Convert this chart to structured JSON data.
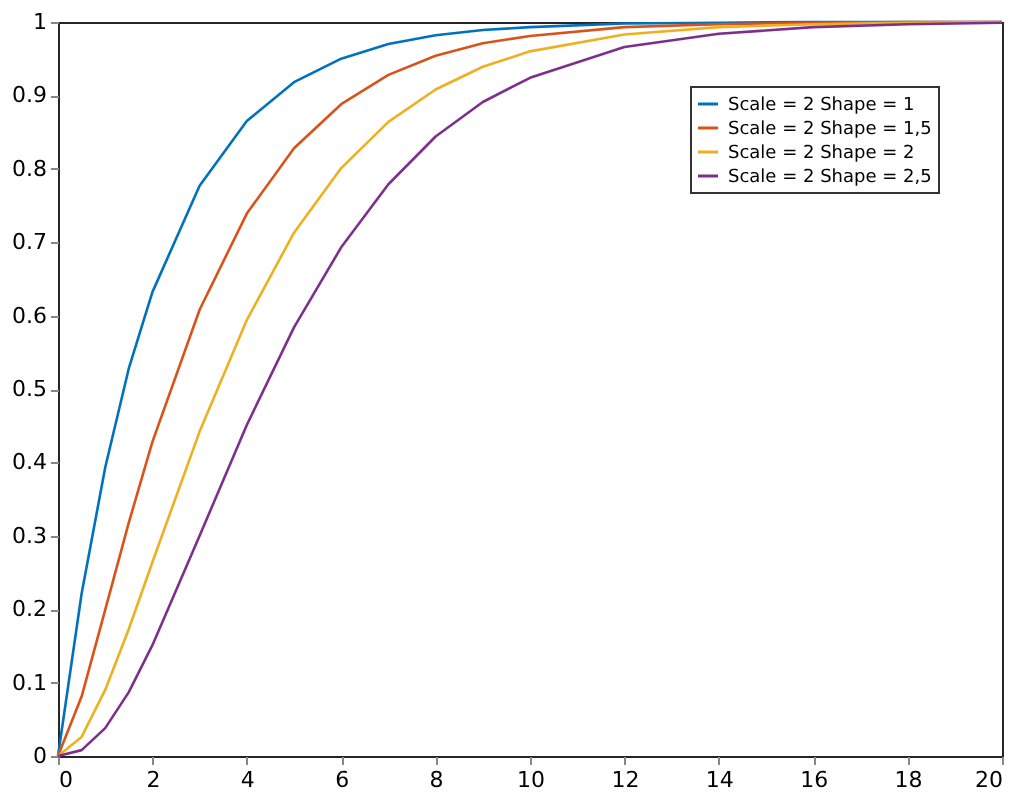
{
  "chart_data": {
    "type": "line",
    "x": [
      0,
      0.5,
      1,
      1.5,
      2,
      3,
      4,
      5,
      6,
      7,
      8,
      9,
      10,
      12,
      14,
      16,
      18,
      20
    ],
    "series": [
      {
        "name": "Scale = 2 Shape = 1",
        "color": "#0072bd",
        "values": [
          0,
          0.221,
          0.393,
          0.528,
          0.632,
          0.777,
          0.865,
          0.918,
          0.95,
          0.97,
          0.982,
          0.989,
          0.993,
          0.998,
          0.999,
          1,
          1,
          1
        ]
      },
      {
        "name": "Scale = 2 Shape = 1,5",
        "color": "#d95319",
        "values": [
          0,
          0.081,
          0.199,
          0.318,
          0.428,
          0.608,
          0.739,
          0.828,
          0.888,
          0.928,
          0.954,
          0.971,
          0.981,
          0.993,
          0.997,
          0.999,
          1,
          1
        ]
      },
      {
        "name": "Scale = 2 Shape = 2",
        "color": "#edb120",
        "values": [
          0,
          0.026,
          0.09,
          0.173,
          0.264,
          0.442,
          0.594,
          0.713,
          0.801,
          0.864,
          0.908,
          0.939,
          0.96,
          0.983,
          0.993,
          0.997,
          0.999,
          1
        ]
      },
      {
        "name": "Scale = 2 Shape = 2,5",
        "color": "#7e2f8e",
        "values": [
          0,
          0.008,
          0.038,
          0.087,
          0.151,
          0.3,
          0.451,
          0.584,
          0.693,
          0.779,
          0.844,
          0.891,
          0.924,
          0.966,
          0.984,
          0.993,
          0.997,
          0.999
        ]
      }
    ],
    "xlim": [
      0,
      20
    ],
    "xticks": [
      0,
      2,
      4,
      6,
      8,
      10,
      12,
      14,
      16,
      18,
      20
    ],
    "ylim": [
      0,
      1
    ],
    "yticks": [
      0,
      0.1,
      0.2,
      0.3,
      0.4,
      0.5,
      0.6,
      0.7,
      0.8,
      0.9,
      1
    ],
    "grid": false,
    "legend": "top right",
    "marker": "none",
    "line_style": "solid"
  }
}
